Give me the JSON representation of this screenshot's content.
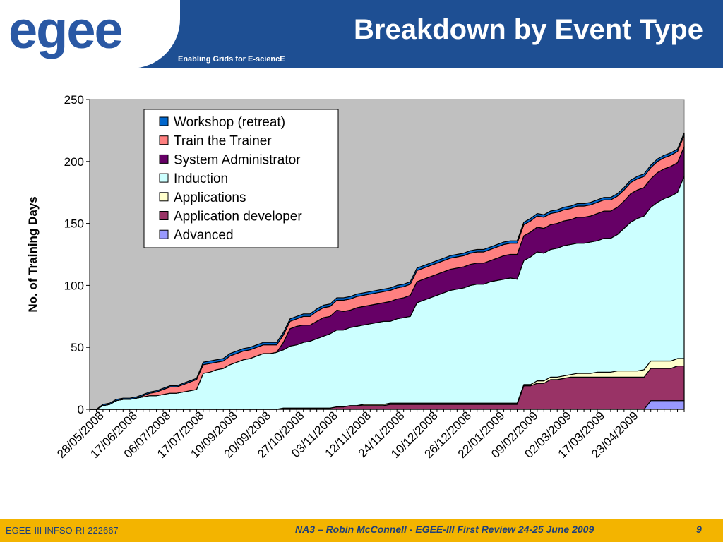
{
  "header": {
    "logo_text": "egee",
    "title": "Breakdown by Event Type",
    "tagline": "Enabling Grids for E-sciencE"
  },
  "footer": {
    "left": "EGEE-III INFSO-RI-222667",
    "center": "NA3 – Robin McConnell - EGEE-III First Review 24-25 June 2009",
    "page": "9"
  },
  "colors": {
    "header_bg": "#1e4f93",
    "footer_bg": "#f3b400",
    "plot_bg": "#c0c0c0"
  },
  "chart_data": {
    "type": "area",
    "stacked": true,
    "title": "",
    "xlabel": "",
    "ylabel": "No. of Training Days",
    "ylim": [
      0,
      250
    ],
    "yticks": [
      0,
      50,
      100,
      150,
      200,
      250
    ],
    "grid": false,
    "legend_position": "top-left inside plot",
    "x_tick_labels": [
      "28/05/2008",
      "17/06/2008",
      "06/07/2008",
      "17/07/2008",
      "10/09/2008",
      "20/09/2008",
      "27/10/2008",
      "03/11/2008",
      "12/11/2008",
      "24/11/2008",
      "10/12/2008",
      "26/12/2008",
      "22/01/2009",
      "09/02/2009",
      "02/03/2009",
      "17/03/2009",
      "23/04/2009"
    ],
    "x_tick_every": 5,
    "x": [
      1,
      2,
      3,
      4,
      5,
      6,
      7,
      8,
      9,
      10,
      11,
      12,
      13,
      14,
      15,
      16,
      17,
      18,
      19,
      20,
      21,
      22,
      23,
      24,
      25,
      26,
      27,
      28,
      29,
      30,
      31,
      32,
      33,
      34,
      35,
      36,
      37,
      38,
      39,
      40,
      41,
      42,
      43,
      44,
      45,
      46,
      47,
      48,
      49,
      50,
      51,
      52,
      53,
      54,
      55,
      56,
      57,
      58,
      59,
      60,
      61,
      62,
      63,
      64,
      65,
      66,
      67,
      68,
      69,
      70,
      71,
      72,
      73,
      74,
      75,
      76,
      77,
      78,
      79,
      80,
      81,
      82,
      83,
      84,
      85,
      86,
      87,
      88,
      89,
      90
    ],
    "series": [
      {
        "name": "Advanced",
        "color": "#9999ff",
        "values": [
          0,
          0,
          0,
          0,
          0,
          0,
          0,
          0,
          0,
          0,
          0,
          0,
          0,
          0,
          0,
          0,
          0,
          0,
          0,
          0,
          0,
          0,
          0,
          0,
          0,
          0,
          0,
          0,
          0,
          0,
          0,
          0,
          0,
          0,
          0,
          0,
          0,
          0,
          0,
          0,
          0,
          0,
          0,
          0,
          0,
          0,
          0,
          0,
          0,
          0,
          0,
          0,
          0,
          0,
          0,
          0,
          0,
          0,
          0,
          0,
          0,
          0,
          0,
          0,
          0,
          0,
          0,
          0,
          0,
          0,
          0,
          0,
          0,
          0,
          0,
          0,
          0,
          0,
          0,
          0,
          0,
          0,
          0,
          0,
          7,
          7,
          7,
          7,
          7,
          7
        ]
      },
      {
        "name": "Application developer",
        "color": "#993366",
        "values": [
          0,
          0,
          0,
          0,
          0,
          0,
          0,
          0,
          0,
          0,
          0,
          0,
          0,
          0,
          0,
          0,
          0,
          0,
          0,
          0,
          0,
          0,
          0,
          0,
          0,
          0,
          0,
          0,
          0,
          1,
          1,
          1,
          1,
          1,
          1,
          1,
          1,
          2,
          2,
          3,
          3,
          3,
          3,
          3,
          3,
          4,
          4,
          4,
          4,
          4,
          4,
          4,
          4,
          4,
          4,
          4,
          4,
          4,
          4,
          4,
          4,
          4,
          4,
          4,
          4,
          19,
          19,
          21,
          21,
          24,
          24,
          25,
          26,
          26,
          26,
          26,
          26,
          26,
          26,
          26,
          26,
          26,
          26,
          26,
          26,
          26,
          26,
          26,
          28,
          28
        ]
      },
      {
        "name": "Applications",
        "color": "#ffffcc",
        "values": [
          0,
          0,
          0,
          0,
          0,
          0,
          0,
          0,
          0,
          0,
          0,
          0,
          0,
          0,
          0,
          0,
          0,
          0,
          0,
          0,
          0,
          0,
          0,
          0,
          0,
          0,
          0,
          0,
          0,
          0,
          0,
          0,
          0,
          0,
          0,
          0,
          0,
          0,
          0,
          0,
          0,
          1,
          1,
          1,
          1,
          1,
          1,
          1,
          1,
          1,
          1,
          1,
          1,
          1,
          1,
          1,
          1,
          1,
          1,
          1,
          1,
          1,
          1,
          1,
          1,
          1,
          1,
          2,
          2,
          2,
          2,
          2,
          2,
          3,
          3,
          3,
          4,
          4,
          4,
          5,
          5,
          5,
          5,
          6,
          6,
          6,
          6,
          6,
          6,
          6
        ]
      },
      {
        "name": "Induction",
        "color": "#ccffff",
        "values": [
          0,
          0,
          3,
          4,
          7,
          8,
          8,
          9,
          10,
          11,
          11,
          12,
          13,
          13,
          14,
          15,
          16,
          29,
          30,
          32,
          33,
          36,
          38,
          40,
          41,
          43,
          45,
          45,
          46,
          47,
          50,
          51,
          53,
          54,
          56,
          58,
          60,
          62,
          62,
          63,
          64,
          64,
          65,
          66,
          67,
          66,
          68,
          69,
          70,
          81,
          83,
          85,
          87,
          89,
          91,
          92,
          93,
          95,
          96,
          96,
          98,
          99,
          100,
          101,
          100,
          100,
          103,
          104,
          103,
          103,
          104,
          105,
          105,
          105,
          105,
          106,
          106,
          108,
          108,
          110,
          115,
          120,
          123,
          124,
          124,
          128,
          131,
          133,
          134,
          147
        ]
      },
      {
        "name": "System Administrator",
        "color": "#660066",
        "values": [
          0,
          0,
          0,
          0,
          0,
          0,
          0,
          0,
          0,
          0,
          0,
          0,
          0,
          0,
          0,
          0,
          0,
          0,
          0,
          0,
          0,
          0,
          0,
          0,
          0,
          0,
          0,
          0,
          0,
          6,
          14,
          15,
          14,
          13,
          14,
          15,
          14,
          16,
          15,
          14,
          15,
          15,
          15,
          15,
          15,
          16,
          16,
          16,
          17,
          17,
          17,
          17,
          17,
          17,
          17,
          17,
          17,
          17,
          17,
          17,
          17,
          18,
          19,
          19,
          20,
          20,
          20,
          20,
          20,
          20,
          20,
          20,
          20,
          21,
          21,
          21,
          22,
          22,
          22,
          22,
          22,
          23,
          23,
          23,
          23,
          24,
          24,
          24,
          24,
          24
        ]
      },
      {
        "name": "Train the Trainer",
        "color": "#ff8080",
        "values": [
          0,
          0,
          0,
          0,
          0,
          0,
          0,
          0,
          1,
          2,
          3,
          4,
          5,
          5,
          6,
          7,
          8,
          7,
          7,
          6,
          6,
          7,
          7,
          7,
          7,
          7,
          7,
          7,
          6,
          6,
          6,
          6,
          7,
          7,
          8,
          8,
          8,
          8,
          9,
          9,
          9,
          9,
          9,
          9,
          9,
          9,
          9,
          9,
          9,
          9,
          9,
          9,
          9,
          9,
          9,
          9,
          9,
          9,
          9,
          9,
          9,
          9,
          9,
          9,
          9,
          9,
          9,
          9,
          9,
          9,
          9,
          9,
          9,
          9,
          9,
          9,
          9,
          9,
          9,
          9,
          9,
          9,
          9,
          9,
          9,
          9,
          9,
          9,
          9,
          9
        ]
      },
      {
        "name": "Workshop (retreat)",
        "color": "#0066cc",
        "values": [
          0,
          0,
          1,
          1,
          1,
          1,
          1,
          1,
          1,
          1,
          1,
          1,
          1,
          1,
          1,
          1,
          1,
          2,
          2,
          2,
          2,
          2,
          2,
          2,
          2,
          2,
          2,
          2,
          2,
          2,
          2,
          2,
          2,
          2,
          2,
          2,
          2,
          2,
          2,
          2,
          2,
          2,
          2,
          2,
          2,
          2,
          2,
          2,
          2,
          2,
          2,
          2,
          2,
          2,
          2,
          2,
          2,
          2,
          2,
          2,
          2,
          2,
          2,
          2,
          2,
          2,
          2,
          2,
          2,
          2,
          2,
          2,
          2,
          2,
          2,
          2,
          2,
          2,
          2,
          2,
          2,
          2,
          2,
          2,
          2,
          2,
          2,
          2,
          2,
          2
        ]
      }
    ],
    "legend_order": [
      "Workshop (retreat)",
      "Train the Trainer",
      "System Administrator",
      "Induction",
      "Applications",
      "Application developer",
      "Advanced"
    ]
  }
}
